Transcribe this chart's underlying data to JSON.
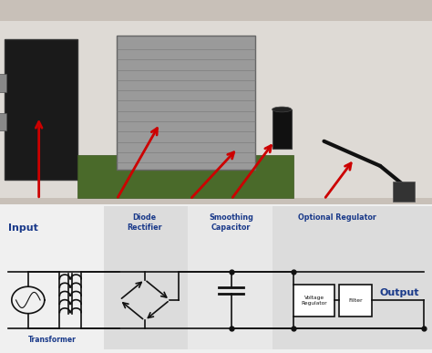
{
  "photo_bg_color": "#c8c0b8",
  "diagram_bg_color": "#f0f0f0",
  "text_color": "#1a3a8a",
  "arrow_color": "#cc0000",
  "line_color": "#111111",
  "labels": {
    "input": "Input",
    "transformer": "Transformer",
    "diode": "Diode\nRectifier",
    "smoothing": "Smoothing\nCapacitor",
    "optional": "Optional Regulator",
    "voltage_reg": "Voltage\nRegulator",
    "filter": "Filter",
    "output": "Output"
  },
  "fig_width": 4.74,
  "fig_height": 3.87
}
